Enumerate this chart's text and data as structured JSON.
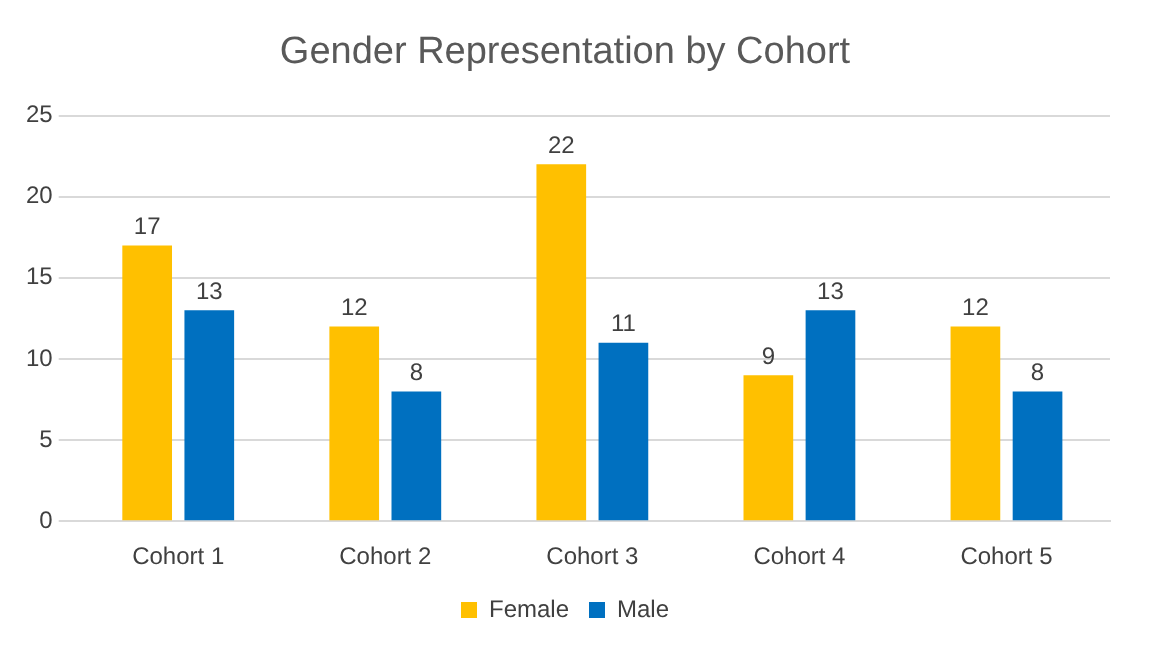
{
  "chart_data": {
    "type": "bar",
    "title": "Gender Representation by Cohort",
    "categories": [
      "Cohort 1",
      "Cohort 2",
      "Cohort 3",
      "Cohort 4",
      "Cohort 5"
    ],
    "series": [
      {
        "name": "Female",
        "color": "#ffc000",
        "values": [
          17,
          12,
          22,
          9,
          12
        ]
      },
      {
        "name": "Male",
        "color": "#0070c0",
        "values": [
          13,
          8,
          11,
          13,
          8
        ]
      }
    ],
    "ylim": [
      0,
      25
    ],
    "yticks": [
      0,
      5,
      10,
      15,
      20,
      25
    ],
    "grid": "y",
    "legend": "bottom",
    "data_labels": true
  }
}
